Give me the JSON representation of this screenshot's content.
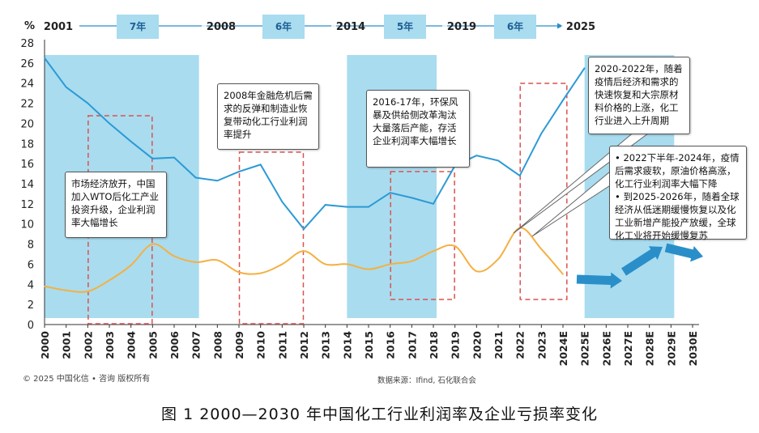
{
  "chart_data": {
    "type": "line",
    "y_unit_label": "%",
    "ylim": [
      0,
      28
    ],
    "y_ticks": [
      0,
      2,
      4,
      6,
      8,
      10,
      12,
      14,
      16,
      18,
      20,
      22,
      24,
      26,
      28
    ],
    "categories": [
      "2000",
      "2001",
      "2002",
      "2003",
      "2004",
      "2005",
      "2006",
      "2007",
      "2008",
      "2009",
      "2010",
      "2011",
      "2012",
      "2013",
      "2014",
      "2015",
      "2016",
      "2017",
      "2018",
      "2019",
      "2020",
      "2021",
      "2022",
      "2023",
      "2024E",
      "2025E",
      "2026E",
      "2027E",
      "2028E",
      "2029E",
      "2030E"
    ],
    "series": [
      {
        "color": "#2c9ad5",
        "values": [
          26.5,
          23.6,
          22.0,
          20.0,
          18.2,
          16.5,
          16.6,
          14.6,
          14.3,
          15.2,
          15.9,
          12.2,
          9.5,
          11.9,
          11.7,
          11.7,
          13.1,
          12.6,
          12.0,
          15.8,
          16.8,
          16.3,
          14.8,
          19.0,
          22.3,
          25.5,
          null,
          null,
          null,
          null,
          null
        ]
      },
      {
        "color": "#f5b041",
        "values": [
          3.8,
          3.4,
          3.3,
          4.4,
          5.9,
          8.0,
          6.8,
          6.2,
          6.4,
          5.2,
          5.1,
          6.0,
          7.3,
          6.0,
          6.0,
          5.5,
          6.0,
          6.3,
          7.3,
          7.8,
          5.3,
          6.5,
          9.6,
          7.5,
          5.0,
          null,
          null,
          null,
          null,
          null,
          null
        ]
      }
    ],
    "timeline": {
      "years": [
        "2001",
        "2008",
        "2014",
        "2019",
        "2025"
      ],
      "intervals": [
        "7年",
        "6年",
        "5年",
        "6年"
      ]
    },
    "shaded_periods": [
      [
        "2000",
        "2007"
      ],
      [
        "2014",
        "2018"
      ],
      [
        "2025E",
        "2029E"
      ]
    ],
    "annotations": [
      "市场经济放开，中国加入WTO后化工产业投资升级，企业利润率大幅增长",
      "2008年金融危机后需求的反弹和制造业恢复带动化工行业利润率提升",
      "2016-17年，环保风暴及供给侧改革淘汰大量落后产能，存活企业利润率大幅增长",
      "2020-2022年，随着疫情后经济和需求的快速恢复和大宗原材料价格的上涨，化工行业进入上升周期"
    ],
    "forecast_bullets": [
      "• 2022下半年-2024年，疫情后需求疲软，原油价格高涨，化工行业利润率大幅下降",
      "• 到2025-2026年，随着全球经济从低迷期缓慢恢复以及化工业新增产能投产放缓，全球化工业将开始缓慢复苏"
    ],
    "copyright": "© 2025 中国化信 • 咨询  版权所有",
    "source": "数据来源：Ifind, 石化联合会",
    "caption": "图 1 2000—2030 年中国化工行业利润率及企业亏损率变化",
    "colors": {
      "shade": "#a9dcef",
      "dashed_box": "#d9534f",
      "arrow": "#2a8fc9",
      "axis": "#333333",
      "interval_box": "#a9dcef"
    }
  }
}
